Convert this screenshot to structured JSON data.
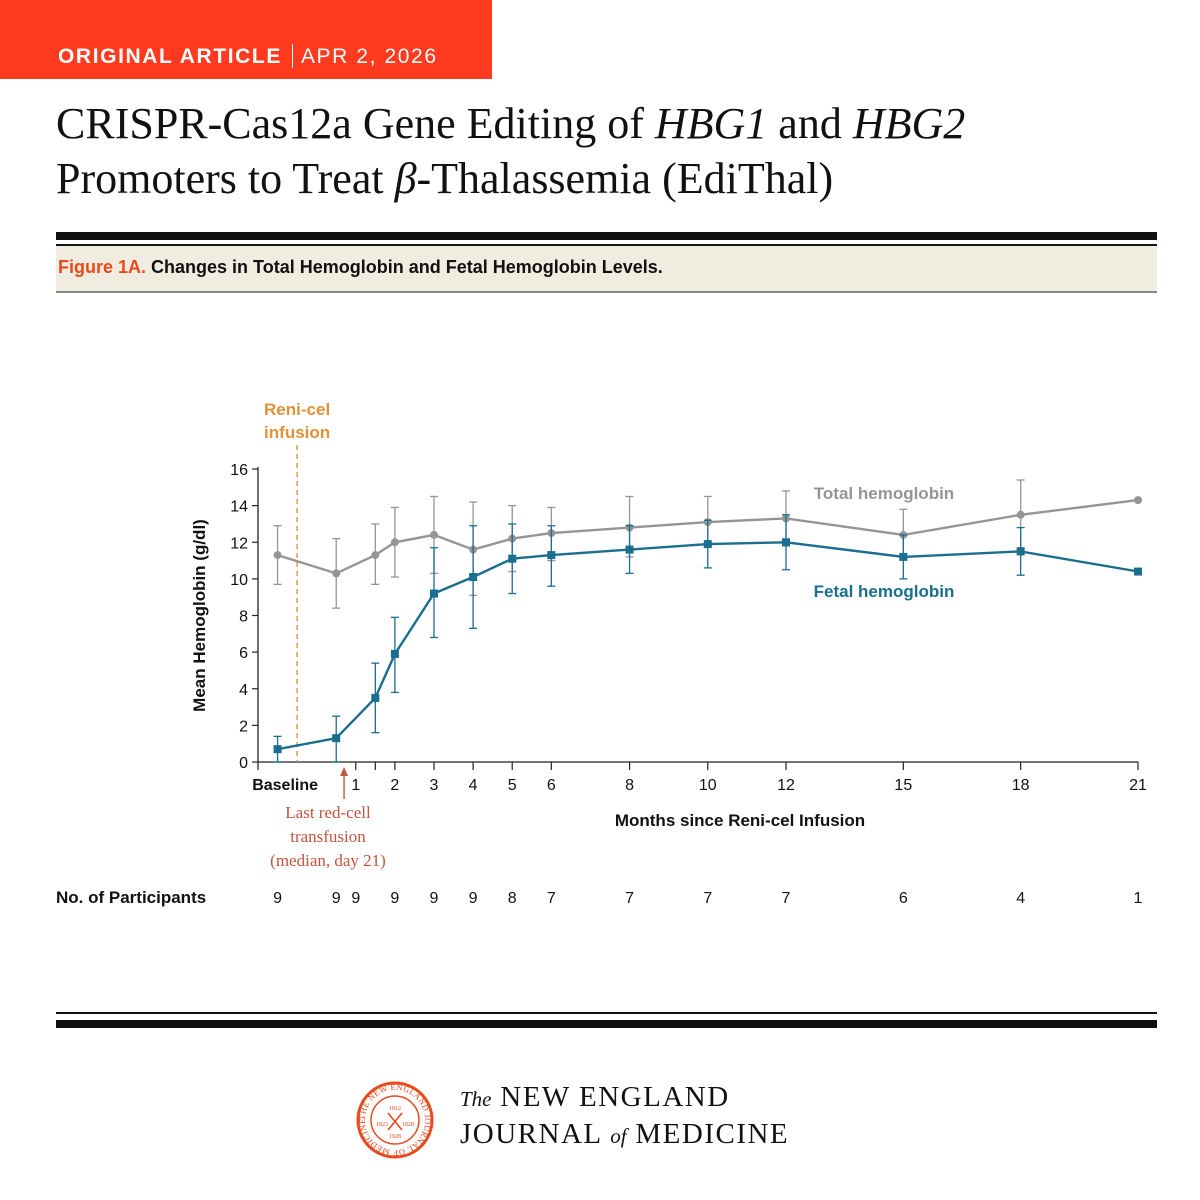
{
  "header": {
    "article_type": "ORIGINAL ARTICLE",
    "date": "APR 2, 2026",
    "title_parts": [
      "CRISPR-Cas12a Gene Editing of ",
      "HBG1",
      " and ",
      "HBG2",
      "Promoters to Treat ",
      "β",
      "-Thalassemia (EdiThal)"
    ]
  },
  "figure": {
    "label": "Figure 1A.",
    "caption": "Changes in Total Hemoglobin and Fetal Hemoglobin Levels."
  },
  "chart_data": {
    "type": "line",
    "ylabel": "Mean Hemoglobin (g/dl)",
    "xlabel": "Months since Reni-cel Infusion",
    "ylim": [
      0,
      16
    ],
    "yticks": [
      0,
      2,
      4,
      6,
      8,
      10,
      12,
      14,
      16
    ],
    "xlim": [
      -1.5,
      21
    ],
    "xticks": [
      {
        "x": -1.5,
        "label": "Baseline"
      },
      {
        "x": 1,
        "label": "1"
      },
      {
        "x": 1.5,
        "label": ""
      },
      {
        "x": 2,
        "label": "2"
      },
      {
        "x": 3,
        "label": "3"
      },
      {
        "x": 4,
        "label": "4"
      },
      {
        "x": 5,
        "label": "5"
      },
      {
        "x": 6,
        "label": "6"
      },
      {
        "x": 8,
        "label": "8"
      },
      {
        "x": 10,
        "label": "10"
      },
      {
        "x": 12,
        "label": "12"
      },
      {
        "x": 15,
        "label": "15"
      },
      {
        "x": 18,
        "label": "18"
      },
      {
        "x": 21,
        "label": "21"
      }
    ],
    "series": [
      {
        "name": "Total hemoglobin",
        "color": "#959595",
        "marker": "circle",
        "points": [
          {
            "x": -1.0,
            "y": 11.3,
            "lo": 9.7,
            "hi": 12.9
          },
          {
            "x": 0.5,
            "y": 10.3,
            "lo": 8.4,
            "hi": 12.2
          },
          {
            "x": 1.5,
            "y": 11.3,
            "lo": 9.7,
            "hi": 13.0
          },
          {
            "x": 2,
            "y": 12.0,
            "lo": 10.1,
            "hi": 13.9
          },
          {
            "x": 3,
            "y": 12.4,
            "lo": 10.3,
            "hi": 14.5
          },
          {
            "x": 4,
            "y": 11.6,
            "lo": 9.1,
            "hi": 14.2
          },
          {
            "x": 5,
            "y": 12.2,
            "lo": 10.4,
            "hi": 14.0
          },
          {
            "x": 6,
            "y": 12.5,
            "lo": 11.0,
            "hi": 13.9
          },
          {
            "x": 8,
            "y": 12.8,
            "lo": 11.2,
            "hi": 14.5
          },
          {
            "x": 10,
            "y": 13.1,
            "lo": 11.8,
            "hi": 14.5
          },
          {
            "x": 12,
            "y": 13.3,
            "lo": 11.8,
            "hi": 14.8
          },
          {
            "x": 15,
            "y": 12.4,
            "lo": 11.1,
            "hi": 13.8
          },
          {
            "x": 18,
            "y": 13.5,
            "lo": 11.7,
            "hi": 15.4
          },
          {
            "x": 21,
            "y": 14.3
          }
        ]
      },
      {
        "name": "Fetal hemoglobin",
        "color": "#1a6e8e",
        "marker": "square",
        "points": [
          {
            "x": -1.0,
            "y": 0.7,
            "lo": 0.0,
            "hi": 1.4
          },
          {
            "x": 0.5,
            "y": 1.3,
            "lo": 0.0,
            "hi": 2.5
          },
          {
            "x": 1.5,
            "y": 3.5,
            "lo": 1.6,
            "hi": 5.4
          },
          {
            "x": 2,
            "y": 5.9,
            "lo": 3.8,
            "hi": 7.9
          },
          {
            "x": 3,
            "y": 9.2,
            "lo": 6.8,
            "hi": 11.7
          },
          {
            "x": 4,
            "y": 10.1,
            "lo": 7.3,
            "hi": 12.9
          },
          {
            "x": 5,
            "y": 11.1,
            "lo": 9.2,
            "hi": 13.0
          },
          {
            "x": 6,
            "y": 11.3,
            "lo": 9.6,
            "hi": 12.9
          },
          {
            "x": 8,
            "y": 11.6,
            "lo": 10.3,
            "hi": 12.9
          },
          {
            "x": 10,
            "y": 11.9,
            "lo": 10.6,
            "hi": 13.2
          },
          {
            "x": 12,
            "y": 12.0,
            "lo": 10.5,
            "hi": 13.5
          },
          {
            "x": 15,
            "y": 11.2,
            "lo": 10.0,
            "hi": 12.4
          },
          {
            "x": 18,
            "y": 11.5,
            "lo": 10.2,
            "hi": 12.8
          },
          {
            "x": 21,
            "y": 10.4
          }
        ]
      }
    ],
    "annotations": {
      "infusion_label": [
        "Reni-cel",
        "infusion"
      ],
      "infusion_color": "#e0913a",
      "infusion_x": -0.5,
      "transfusion_label": [
        "Last red-cell",
        "transfusion",
        "(median, day 21)"
      ],
      "transfusion_color": "#c4553f",
      "transfusion_x": 0.7
    },
    "participants": {
      "label": "No. of Participants",
      "counts": [
        {
          "x": -1.0,
          "n": "9"
        },
        {
          "x": 0.5,
          "n": "9"
        },
        {
          "x": 1.0,
          "n": "9"
        },
        {
          "x": 2,
          "n": "9"
        },
        {
          "x": 3,
          "n": "9"
        },
        {
          "x": 4,
          "n": "9"
        },
        {
          "x": 5,
          "n": "8"
        },
        {
          "x": 6,
          "n": "7"
        },
        {
          "x": 8,
          "n": "7"
        },
        {
          "x": 10,
          "n": "7"
        },
        {
          "x": 12,
          "n": "7"
        },
        {
          "x": 15,
          "n": "6"
        },
        {
          "x": 18,
          "n": "4"
        },
        {
          "x": 21,
          "n": "1"
        }
      ]
    }
  },
  "footer": {
    "journal_prefix": "The",
    "journal_line1": "NEW ENGLAND",
    "journal_line2a": "JOURNAL",
    "journal_of": "of",
    "journal_line2b": "MEDICINE",
    "seal_text": "THE NEW ENGLAND JOURNAL OF MEDICINE",
    "seal_years": [
      "1812",
      "1823",
      "1828",
      "1928"
    ]
  }
}
